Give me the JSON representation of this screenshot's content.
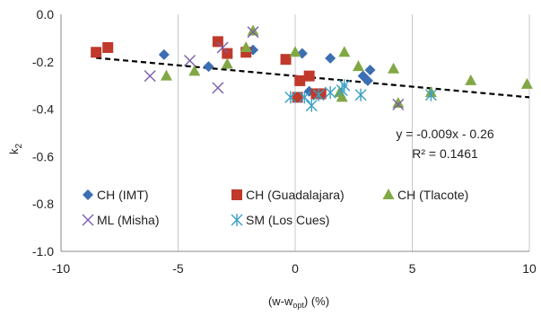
{
  "chart_data": {
    "type": "scatter",
    "xlabel": "(w-w",
    "xlabel_sub": "opt",
    "xlabel_tail": ") (%)",
    "ylabel": "k",
    "ylabel_sub": "2",
    "xlim": [
      -10,
      10
    ],
    "ylim": [
      -1.0,
      0.0
    ],
    "x_ticks": [
      -10,
      -5,
      0,
      5,
      10
    ],
    "x_tick_labels": [
      "-10",
      "-5",
      "0",
      "5",
      "10"
    ],
    "y_ticks": [
      0.0,
      -0.2,
      -0.4,
      -0.6,
      -0.8,
      -1.0
    ],
    "y_tick_labels": [
      "0.0",
      "-0.2",
      "-0.4",
      "-0.6",
      "-0.8",
      "-1.0"
    ],
    "grid": "vertical",
    "legend_position": "bottom-inside",
    "series": [
      {
        "name": "CH (IMT)",
        "marker": "diamond",
        "color": "#3b6eb3",
        "points": [
          [
            -5.6,
            -0.17
          ],
          [
            -3.7,
            -0.22
          ],
          [
            -1.8,
            -0.15
          ],
          [
            0.3,
            -0.165
          ],
          [
            1.5,
            -0.185
          ],
          [
            2.9,
            -0.26
          ],
          [
            3.1,
            -0.28
          ],
          [
            3.2,
            -0.235
          ],
          [
            0.6,
            -0.325
          ]
        ]
      },
      {
        "name": "CH (Guadalajara)",
        "marker": "square",
        "color": "#c0392b",
        "points": [
          [
            -8.5,
            -0.16
          ],
          [
            -8.0,
            -0.14
          ],
          [
            -3.3,
            -0.115
          ],
          [
            -2.9,
            -0.165
          ],
          [
            -2.1,
            -0.16
          ],
          [
            -0.4,
            -0.19
          ],
          [
            0.2,
            -0.28
          ],
          [
            0.6,
            -0.26
          ],
          [
            0.1,
            -0.35
          ],
          [
            0.9,
            -0.335
          ],
          [
            1.1,
            -0.335
          ]
        ]
      },
      {
        "name": "CH (Tlacote)",
        "marker": "triangle",
        "color": "#82a846",
        "points": [
          [
            -5.5,
            -0.26
          ],
          [
            -4.3,
            -0.24
          ],
          [
            -2.9,
            -0.21
          ],
          [
            -2.1,
            -0.14
          ],
          [
            -1.8,
            -0.07
          ],
          [
            0.0,
            -0.16
          ],
          [
            2.1,
            -0.16
          ],
          [
            2.7,
            -0.22
          ],
          [
            1.9,
            -0.33
          ],
          [
            2.0,
            -0.35
          ],
          [
            4.2,
            -0.23
          ],
          [
            4.4,
            -0.375
          ],
          [
            5.8,
            -0.33
          ],
          [
            7.5,
            -0.28
          ],
          [
            9.9,
            -0.295
          ]
        ]
      },
      {
        "name": "ML (Misha)",
        "marker": "x",
        "color": "#7b5ea7",
        "points": [
          [
            -6.2,
            -0.26
          ],
          [
            -4.5,
            -0.195
          ],
          [
            -3.3,
            -0.31
          ],
          [
            -3.1,
            -0.14
          ],
          [
            -1.8,
            -0.075
          ],
          [
            4.4,
            -0.38
          ]
        ]
      },
      {
        "name": "SM (Los Cues)",
        "marker": "asterisk",
        "color": "#3a9fc4",
        "points": [
          [
            -0.2,
            -0.35
          ],
          [
            0.7,
            -0.385
          ],
          [
            1.0,
            -0.34
          ],
          [
            1.5,
            -0.33
          ],
          [
            2.0,
            -0.32
          ],
          [
            2.1,
            -0.3
          ],
          [
            2.8,
            -0.34
          ],
          [
            5.8,
            -0.34
          ],
          [
            0.4,
            -0.35
          ]
        ]
      }
    ],
    "trendline": {
      "slope": -0.009,
      "intercept": -0.26,
      "x_range": [
        -8.5,
        10
      ],
      "style": "dashed",
      "color": "#000000"
    },
    "annotations": {
      "equation": "y = -0.009x - 0.26",
      "r2": "R² = 0.1461"
    }
  }
}
